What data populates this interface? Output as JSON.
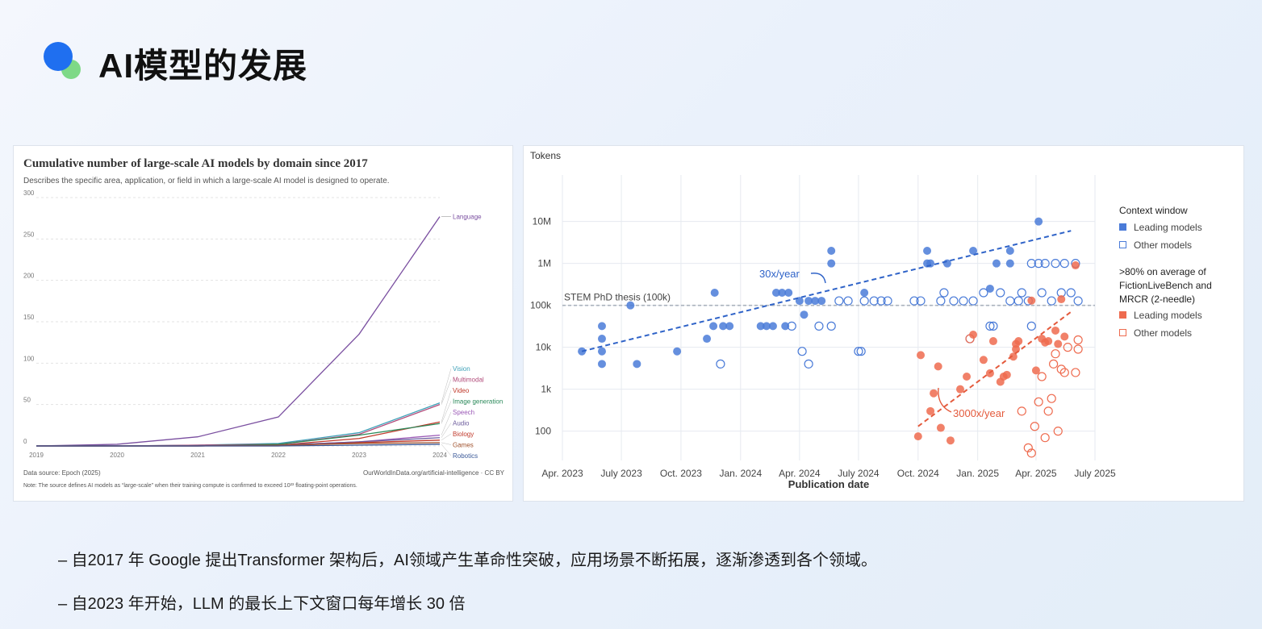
{
  "slide": {
    "title": "AI模型的发展",
    "bullets": [
      "– 自2017 年 Google 提出Transformer 架构后，AI领域产生革命性突破，应用场景不断拓展，逐渐渗透到各个领域。",
      "– 自2023 年开始，LLM 的最长上下文窗口每年增长 30 倍"
    ]
  },
  "chart_data": [
    {
      "type": "line",
      "title": "Cumulative number of large-scale AI models by domain since 2017",
      "subtitle": "Describes the specific area, application, or field in which a large-scale AI model is designed to operate.",
      "xlabel": "",
      "ylabel": "",
      "x": [
        2019,
        2020,
        2021,
        2022,
        2023,
        2024
      ],
      "x_tick_labels": [
        "2019",
        "2020",
        "2021",
        "2022",
        "2023",
        "2024"
      ],
      "ylim": [
        0,
        300
      ],
      "y_ticks": [
        0,
        50,
        100,
        150,
        200,
        250,
        300
      ],
      "grid": true,
      "legend": "labels at line ends (right)",
      "series": [
        {
          "name": "Language",
          "color": "#7a4fa0",
          "values": [
            0,
            2,
            11,
            35,
            135,
            277
          ]
        },
        {
          "name": "Vision",
          "color": "#3ea1b8",
          "values": [
            0,
            0,
            1,
            3,
            16,
            52
          ]
        },
        {
          "name": "Multimodal",
          "color": "#b14b7a",
          "values": [
            0,
            0,
            1,
            2,
            14,
            50
          ]
        },
        {
          "name": "Video",
          "color": "#c0392b",
          "values": [
            0,
            0,
            0,
            1,
            9,
            29
          ]
        },
        {
          "name": "Image generation",
          "color": "#2c8a5b",
          "values": [
            0,
            0,
            0,
            2,
            13,
            27
          ]
        },
        {
          "name": "Speech",
          "color": "#9b59b6",
          "values": [
            0,
            0,
            0,
            1,
            5,
            13
          ]
        },
        {
          "name": "Audio",
          "color": "#6c5b9c",
          "values": [
            0,
            0,
            0,
            1,
            5,
            10
          ]
        },
        {
          "name": "Biology",
          "color": "#c0392b",
          "values": [
            0,
            0,
            0,
            0,
            4,
            7
          ]
        },
        {
          "name": "Games",
          "color": "#a0522d",
          "values": [
            0,
            0,
            0,
            1,
            3,
            4
          ]
        },
        {
          "name": "Robotics",
          "color": "#3b5998",
          "values": [
            0,
            0,
            0,
            0,
            1,
            2
          ]
        }
      ],
      "source": "Data source: Epoch (2025)",
      "credit": "OurWorldInData.org/artificial-intelligence · CC BY",
      "note": "Note: The source defines AI models as “large-scale” when their training compute is confirmed to exceed 10²³ floating-point operations."
    },
    {
      "type": "scatter",
      "title": "",
      "ylabel": "Tokens",
      "xlabel": "Publication date",
      "y_scale": "log",
      "ylim": [
        20,
        20000000
      ],
      "y_ticks": [
        100,
        1000,
        10000,
        100000,
        1000000,
        10000000
      ],
      "y_tick_labels": [
        "100",
        "1k",
        "10k",
        "100k",
        "1M",
        "10M"
      ],
      "xlim": [
        "2023-04-01",
        "2025-07-01"
      ],
      "x_tick_dates": [
        "2023-04-01",
        "2023-07-01",
        "2023-10-01",
        "2024-01-01",
        "2024-04-01",
        "2024-07-01",
        "2024-10-01",
        "2025-01-01",
        "2025-04-01",
        "2025-07-01"
      ],
      "x_tick_labels": [
        "Apr. 2023",
        "July 2023",
        "Oct. 2023",
        "Jan. 2024",
        "Apr. 2024",
        "July 2024",
        "Oct. 2024",
        "Jan. 2025",
        "Apr. 2025",
        "July 2025"
      ],
      "grid": true,
      "reference_line": {
        "value": 100000,
        "label": "STEM PhD thesis (100k)"
      },
      "trend_lines": [
        {
          "label": "30x/year",
          "color": "#2f63c8",
          "from": [
            "2023-05-01",
            8000
          ],
          "to": [
            "2025-05-25",
            6000000
          ]
        },
        {
          "label": "3000x/year",
          "color": "#e45a3c",
          "from": [
            "2024-10-01",
            130
          ],
          "to": [
            "2025-05-25",
            70000
          ]
        }
      ],
      "legend": {
        "title": "Context window",
        "items": [
          "Leading models",
          "Other models"
        ],
        "title2": ">80% on average of FictionLiveBench and MRCR (2-needle)",
        "items2": [
          "Leading models",
          "Other models"
        ]
      },
      "colors": {
        "blue": "#4a7bd8",
        "red": "#ee6b4f"
      },
      "series": [
        {
          "name": "Context window – Leading models",
          "points": [
            [
              "2023-05-01",
              8000
            ],
            [
              "2023-06-01",
              4000
            ],
            [
              "2023-06-01",
              8000
            ],
            [
              "2023-06-01",
              16000
            ],
            [
              "2023-06-01",
              32000
            ],
            [
              "2023-07-15",
              100000
            ],
            [
              "2023-07-25",
              4000
            ],
            [
              "2023-09-25",
              8000
            ],
            [
              "2023-11-10",
              16000
            ],
            [
              "2023-11-20",
              32000
            ],
            [
              "2023-11-22",
              200000
            ],
            [
              "2023-12-05",
              32000
            ],
            [
              "2023-12-15",
              32000
            ],
            [
              "2024-02-01",
              32000
            ],
            [
              "2024-02-10",
              32000
            ],
            [
              "2024-02-20",
              32000
            ],
            [
              "2024-02-25",
              200000
            ],
            [
              "2024-03-05",
              200000
            ],
            [
              "2024-03-10",
              32000
            ],
            [
              "2024-03-15",
              200000
            ],
            [
              "2024-04-01",
              128000
            ],
            [
              "2024-04-08",
              60000
            ],
            [
              "2024-04-15",
              128000
            ],
            [
              "2024-04-25",
              128000
            ],
            [
              "2024-05-05",
              128000
            ],
            [
              "2024-05-20",
              1000000
            ],
            [
              "2024-05-20",
              2000000
            ],
            [
              "2024-07-10",
              200000
            ],
            [
              "2024-10-15",
              1000000
            ],
            [
              "2024-10-15",
              2000000
            ],
            [
              "2024-10-20",
              1000000
            ],
            [
              "2024-11-15",
              1000000
            ],
            [
              "2024-12-25",
              2000000
            ],
            [
              "2025-01-20",
              250000
            ],
            [
              "2025-01-30",
              1000000
            ],
            [
              "2025-02-20",
              1000000
            ],
            [
              "2025-02-20",
              2000000
            ],
            [
              "2025-04-05",
              10000000
            ]
          ]
        },
        {
          "name": "Context window – Other models",
          "points": [
            [
              "2023-12-01",
              4000
            ],
            [
              "2024-03-20",
              32000
            ],
            [
              "2024-04-05",
              8000
            ],
            [
              "2024-04-15",
              4000
            ],
            [
              "2024-05-01",
              32000
            ],
            [
              "2024-05-20",
              32000
            ],
            [
              "2024-06-01",
              128000
            ],
            [
              "2024-06-15",
              128000
            ],
            [
              "2024-07-01",
              8000
            ],
            [
              "2024-07-05",
              8000
            ],
            [
              "2024-07-10",
              128000
            ],
            [
              "2024-07-25",
              128000
            ],
            [
              "2024-08-05",
              128000
            ],
            [
              "2024-08-15",
              128000
            ],
            [
              "2024-09-25",
              128000
            ],
            [
              "2024-10-05",
              128000
            ],
            [
              "2024-11-05",
              128000
            ],
            [
              "2024-11-10",
              200000
            ],
            [
              "2024-11-25",
              128000
            ],
            [
              "2024-12-10",
              128000
            ],
            [
              "2024-12-20",
              16000
            ],
            [
              "2024-12-25",
              128000
            ],
            [
              "2025-01-10",
              200000
            ],
            [
              "2025-01-20",
              32000
            ],
            [
              "2025-01-25",
              32000
            ],
            [
              "2025-02-05",
              200000
            ],
            [
              "2025-02-20",
              128000
            ],
            [
              "2025-03-05",
              128000
            ],
            [
              "2025-03-10",
              200000
            ],
            [
              "2025-03-20",
              128000
            ],
            [
              "2025-03-25",
              32000
            ],
            [
              "2025-03-25",
              1000000
            ],
            [
              "2025-04-05",
              1000000
            ],
            [
              "2025-04-10",
              200000
            ],
            [
              "2025-04-15",
              1000000
            ],
            [
              "2025-04-25",
              128000
            ],
            [
              "2025-05-01",
              1000000
            ],
            [
              "2025-05-10",
              200000
            ],
            [
              "2025-05-15",
              1000000
            ],
            [
              "2025-05-25",
              200000
            ],
            [
              "2025-06-01",
              1000000
            ],
            [
              "2025-06-05",
              128000
            ]
          ]
        },
        {
          "name": ">80% FictionLiveBench/MRCR – Leading models",
          "points": [
            [
              "2024-10-01",
              75
            ],
            [
              "2024-10-05",
              6500
            ],
            [
              "2024-10-20",
              300
            ],
            [
              "2024-10-25",
              800
            ],
            [
              "2024-11-01",
              3500
            ],
            [
              "2024-11-05",
              120
            ],
            [
              "2024-11-20",
              60
            ],
            [
              "2024-12-05",
              1000
            ],
            [
              "2024-12-15",
              2000
            ],
            [
              "2024-12-25",
              20000
            ],
            [
              "2025-01-10",
              5000
            ],
            [
              "2025-01-20",
              2400
            ],
            [
              "2025-01-25",
              14000
            ],
            [
              "2025-02-05",
              1500
            ],
            [
              "2025-02-10",
              2000
            ],
            [
              "2025-02-15",
              2200
            ],
            [
              "2025-02-25",
              6000
            ],
            [
              "2025-03-01",
              12000
            ],
            [
              "2025-03-01",
              9000
            ],
            [
              "2025-03-05",
              14000
            ],
            [
              "2025-03-25",
              130000
            ],
            [
              "2025-04-01",
              2800
            ],
            [
              "2025-04-10",
              16000
            ],
            [
              "2025-04-15",
              13000
            ],
            [
              "2025-04-20",
              14000
            ],
            [
              "2025-05-01",
              25000
            ],
            [
              "2025-05-05",
              12000
            ],
            [
              "2025-05-10",
              140000
            ],
            [
              "2025-05-15",
              18000
            ],
            [
              "2025-06-01",
              900000
            ]
          ]
        },
        {
          "name": ">80% FictionLiveBench/MRCR – Other models",
          "points": [
            [
              "2024-12-20",
              16000
            ],
            [
              "2025-03-10",
              300
            ],
            [
              "2025-03-20",
              40
            ],
            [
              "2025-03-25",
              30
            ],
            [
              "2025-03-30",
              130
            ],
            [
              "2025-04-05",
              500
            ],
            [
              "2025-04-10",
              2000
            ],
            [
              "2025-04-15",
              70
            ],
            [
              "2025-04-20",
              300
            ],
            [
              "2025-04-25",
              600
            ],
            [
              "2025-04-28",
              4000
            ],
            [
              "2025-05-01",
              7000
            ],
            [
              "2025-05-05",
              100
            ],
            [
              "2025-05-10",
              3000
            ],
            [
              "2025-05-15",
              2500
            ],
            [
              "2025-05-20",
              10000
            ],
            [
              "2025-06-01",
              2500
            ],
            [
              "2025-06-05",
              9000
            ],
            [
              "2025-06-05",
              15000
            ]
          ]
        }
      ]
    }
  ]
}
